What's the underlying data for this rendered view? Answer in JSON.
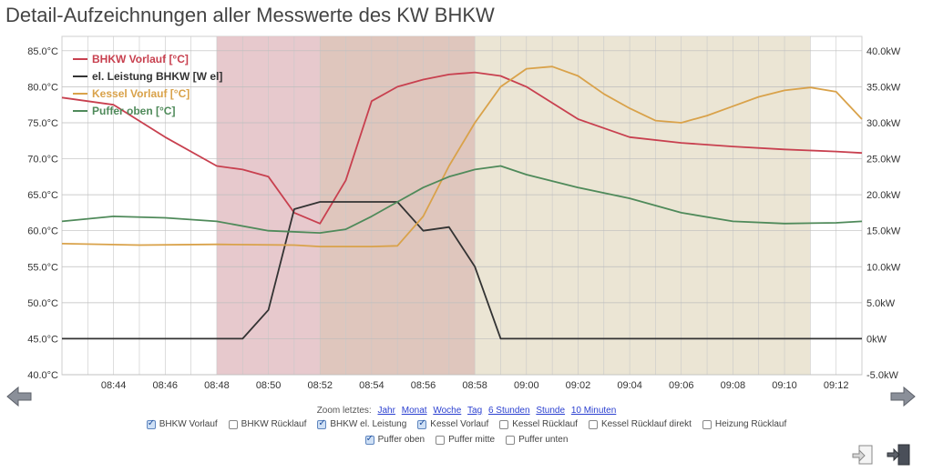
{
  "page": {
    "title": "Detail-Aufzeichnungen aller Messwerte des KW BHKW"
  },
  "chart_data": {
    "type": "line",
    "title": "Detail-Aufzeichnungen aller Messwerte des KW BHKW",
    "x_ticks": [
      "08:44",
      "08:46",
      "08:48",
      "08:50",
      "08:52",
      "08:54",
      "08:56",
      "08:58",
      "09:00",
      "09:02",
      "09:04",
      "09:06",
      "09:08",
      "09:10",
      "09:12"
    ],
    "xlim": [
      "08:42",
      "09:13"
    ],
    "y_left": {
      "ticks": [
        "40.0°C",
        "45.0°C",
        "50.0°C",
        "55.0°C",
        "60.0°C",
        "65.0°C",
        "70.0°C",
        "75.0°C",
        "80.0°C",
        "85.0°C"
      ],
      "ylim": [
        40,
        87
      ],
      "unit": "°C"
    },
    "y_right": {
      "ticks": [
        "-5.0kW",
        "0kW",
        "5.0kW",
        "10.0kW",
        "15.0kW",
        "20.0kW",
        "25.0kW",
        "30.0kW",
        "35.0kW",
        "40.0kW"
      ],
      "ylim": [
        -5,
        42
      ],
      "unit": "kW"
    },
    "grid": true,
    "legend_position": "top-left",
    "shaded_regions": [
      {
        "from": "08:48",
        "to": "08:52",
        "color": "#e4c3c8"
      },
      {
        "from": "08:52",
        "to": "08:58",
        "color": "#dcc0b6"
      },
      {
        "from": "08:58",
        "to": "09:11",
        "color": "#e9e2cf"
      }
    ],
    "series": [
      {
        "name": "BHKW Vorlauf [°C]",
        "color": "#c8404f",
        "axis": "left",
        "x": [
          "08:42",
          "08:44",
          "08:46",
          "08:48",
          "08:49",
          "08:50",
          "08:51",
          "08:52",
          "08:53",
          "08:54",
          "08:55",
          "08:56",
          "08:57",
          "08:58",
          "08:59",
          "09:00",
          "09:02",
          "09:04",
          "09:06",
          "09:08",
          "09:10",
          "09:12",
          "09:13"
        ],
        "y": [
          78.5,
          77.5,
          73,
          69,
          68.5,
          67.5,
          62.5,
          61,
          67,
          78,
          80,
          81,
          81.7,
          82,
          81.5,
          80,
          75.5,
          73,
          72.2,
          71.7,
          71.3,
          71,
          70.8
        ]
      },
      {
        "name": "el. Leistung BHKW [W el]",
        "color": "#333333",
        "axis": "right",
        "x": [
          "08:42",
          "08:48",
          "08:49",
          "08:50",
          "08:51",
          "08:52",
          "08:54",
          "08:55",
          "08:56",
          "08:57",
          "08:58",
          "08:59",
          "09:13"
        ],
        "y": [
          0,
          0,
          0,
          4,
          18,
          19,
          19,
          19,
          15,
          15.5,
          10,
          0,
          0
        ]
      },
      {
        "name": "Kessel Vorlauf [°C]",
        "color": "#d9a24a",
        "axis": "left",
        "x": [
          "08:42",
          "08:45",
          "08:48",
          "08:51",
          "08:52",
          "08:54",
          "08:55",
          "08:56",
          "08:57",
          "08:58",
          "08:59",
          "09:00",
          "09:01",
          "09:02",
          "09:03",
          "09:04",
          "09:05",
          "09:06",
          "09:07",
          "09:08",
          "09:09",
          "09:10",
          "09:11",
          "09:12",
          "09:13"
        ],
        "y": [
          58.2,
          58,
          58.1,
          58,
          57.8,
          57.8,
          57.9,
          62,
          69,
          75,
          80,
          82.5,
          82.8,
          81.5,
          79,
          77,
          75.3,
          75,
          76,
          77.3,
          78.6,
          79.5,
          79.9,
          79.3,
          75.5
        ]
      },
      {
        "name": "Puffer oben [°C]",
        "color": "#4f8a5a",
        "axis": "left",
        "x": [
          "08:42",
          "08:44",
          "08:46",
          "08:48",
          "08:50",
          "08:52",
          "08:53",
          "08:54",
          "08:55",
          "08:56",
          "08:57",
          "08:58",
          "08:59",
          "09:00",
          "09:02",
          "09:04",
          "09:06",
          "09:08",
          "09:10",
          "09:12",
          "09:13"
        ],
        "y": [
          61.3,
          62,
          61.8,
          61.3,
          60,
          59.7,
          60.2,
          62,
          64,
          66,
          67.5,
          68.5,
          69,
          67.8,
          66,
          64.5,
          62.5,
          61.3,
          61,
          61.1,
          61.3
        ]
      }
    ]
  },
  "zoom": {
    "label": "Zoom letztes:",
    "links": [
      "Jahr",
      "Monat",
      "Woche",
      "Tag",
      "6 Stunden",
      "Stunde",
      "10 Minuten"
    ]
  },
  "checkboxes_row1": [
    {
      "label": "BHKW Vorlauf",
      "checked": true
    },
    {
      "label": "BHKW Rücklauf",
      "checked": false
    },
    {
      "label": "BHKW el. Leistung",
      "checked": true
    },
    {
      "label": "Kessel Vorlauf",
      "checked": true
    },
    {
      "label": "Kessel Rücklauf",
      "checked": false
    },
    {
      "label": "Kessel Rücklauf direkt",
      "checked": false
    },
    {
      "label": "Heizung Rücklauf",
      "checked": false
    }
  ],
  "checkboxes_row2": [
    {
      "label": "Puffer oben",
      "checked": true
    },
    {
      "label": "Puffer mitte",
      "checked": false
    },
    {
      "label": "Puffer unten",
      "checked": false
    }
  ],
  "icons": {
    "prev": "arrow-left-icon",
    "next": "arrow-right-icon",
    "export": "export-icon",
    "exit": "exit-icon"
  }
}
